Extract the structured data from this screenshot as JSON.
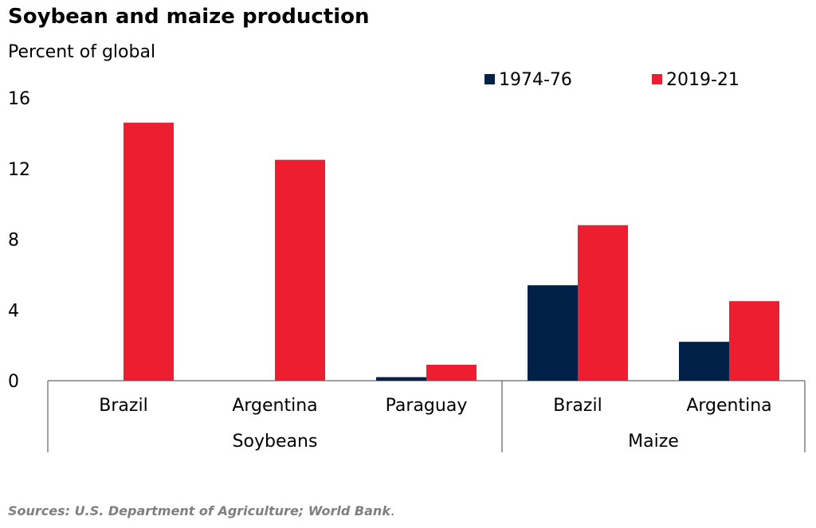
{
  "title": "Soybean and maize production",
  "ylabel": "Percent of global",
  "source": "Sources: U.S. Department of Agriculture; World Bank",
  "source_period": ".",
  "colors": {
    "1974-76": "#002147",
    "2019-21": "#ec1e2f"
  },
  "chart_data": {
    "type": "bar",
    "title": "Soybean and maize production",
    "ylabel": "Percent of global",
    "ylim": [
      0,
      16
    ],
    "yticks": [
      0,
      4,
      8,
      12,
      16
    ],
    "grid": false,
    "legend_position": "top-right",
    "categories": [
      "Brazil",
      "Argentina",
      "Paraguay",
      "Brazil",
      "Argentina"
    ],
    "groups": [
      {
        "label": "Soybeans",
        "categories": [
          "Brazil",
          "Argentina",
          "Paraguay"
        ]
      },
      {
        "label": "Maize",
        "categories": [
          "Brazil",
          "Argentina"
        ]
      }
    ],
    "series": [
      {
        "name": "1974-76",
        "values": [
          0,
          0,
          0.2,
          5.4,
          2.2
        ]
      },
      {
        "name": "2019-21",
        "values": [
          14.6,
          12.5,
          0.9,
          8.8,
          4.5
        ]
      }
    ]
  }
}
